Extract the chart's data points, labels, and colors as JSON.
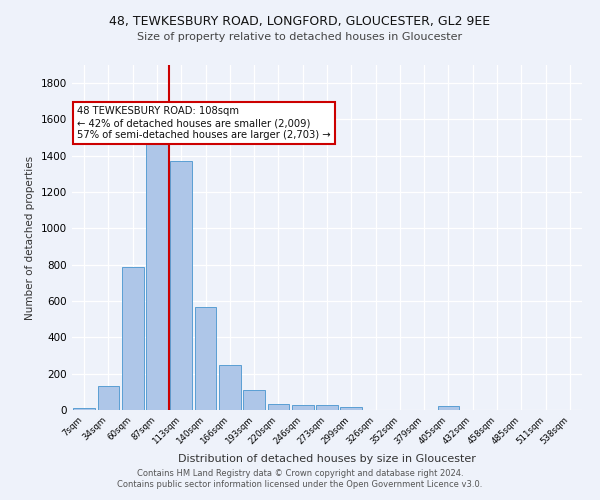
{
  "title1": "48, TEWKESBURY ROAD, LONGFORD, GLOUCESTER, GL2 9EE",
  "title2": "Size of property relative to detached houses in Gloucester",
  "xlabel": "Distribution of detached houses by size in Gloucester",
  "ylabel": "Number of detached properties",
  "bar_color": "#aec6e8",
  "bar_edge_color": "#5a9fd4",
  "categories": [
    "7sqm",
    "34sqm",
    "60sqm",
    "87sqm",
    "113sqm",
    "140sqm",
    "166sqm",
    "193sqm",
    "220sqm",
    "246sqm",
    "273sqm",
    "299sqm",
    "326sqm",
    "352sqm",
    "379sqm",
    "405sqm",
    "432sqm",
    "458sqm",
    "485sqm",
    "511sqm",
    "538sqm"
  ],
  "values": [
    10,
    130,
    790,
    1470,
    1370,
    570,
    248,
    110,
    35,
    30,
    30,
    18,
    0,
    0,
    0,
    20,
    0,
    0,
    0,
    0,
    0
  ],
  "ylim": [
    0,
    1900
  ],
  "yticks": [
    0,
    200,
    400,
    600,
    800,
    1000,
    1200,
    1400,
    1600,
    1800
  ],
  "vline_x": 3.5,
  "vline_color": "#cc0000",
  "annotation_text": "48 TEWKESBURY ROAD: 108sqm\n← 42% of detached houses are smaller (2,009)\n57% of semi-detached houses are larger (2,703) →",
  "annotation_box_color": "#ffffff",
  "annotation_box_edge": "#cc0000",
  "footnote1": "Contains HM Land Registry data © Crown copyright and database right 2024.",
  "footnote2": "Contains public sector information licensed under the Open Government Licence v3.0.",
  "background_color": "#eef2fa",
  "grid_color": "#ffffff"
}
